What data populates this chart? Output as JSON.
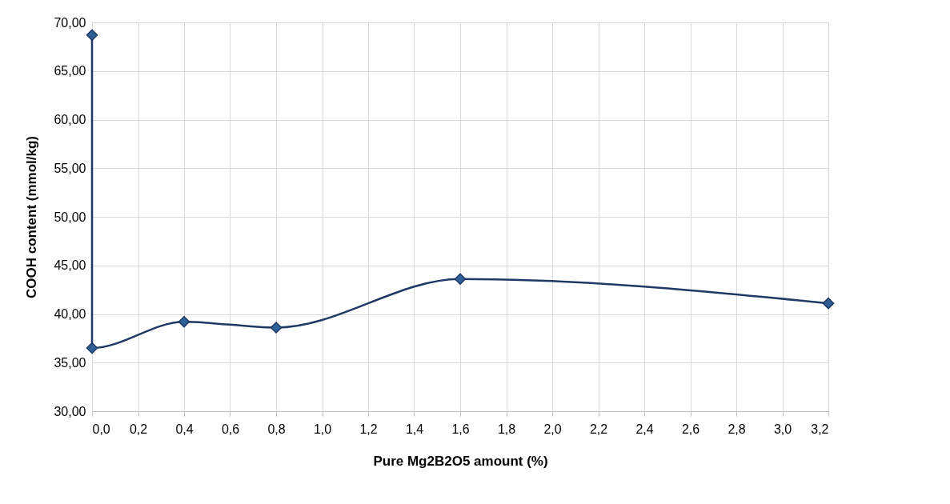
{
  "chart_data": {
    "type": "line",
    "xlabel": "Pure Mg2B2O5 amount (%)",
    "ylabel": "COOH content (mmol/kg)",
    "x": [
      0,
      0,
      0.4,
      0.8,
      1.6,
      3.2
    ],
    "series": [
      {
        "color": "#1f3864",
        "values": [
          68.7,
          36.5,
          39.2,
          38.6,
          43.6,
          41.1
        ]
      }
    ],
    "xlim": [
      0,
      3.2
    ],
    "ylim": [
      30,
      70
    ],
    "xticks": [
      {
        "value": 0,
        "label": "0,0"
      },
      {
        "value": 0.2,
        "label": "0,2"
      },
      {
        "value": 0.4,
        "label": "0,4"
      },
      {
        "value": 0.6,
        "label": "0,6"
      },
      {
        "value": 0.8,
        "label": "0,8"
      },
      {
        "value": 1.0,
        "label": "1,0"
      },
      {
        "value": 1.2,
        "label": "1,2"
      },
      {
        "value": 1.4,
        "label": "1,4"
      },
      {
        "value": 1.6,
        "label": "1,6"
      },
      {
        "value": 1.8,
        "label": "1,8"
      },
      {
        "value": 2.0,
        "label": "2,0"
      },
      {
        "value": 2.2,
        "label": "2,2"
      },
      {
        "value": 2.4,
        "label": "2,4"
      },
      {
        "value": 2.6,
        "label": "2,6"
      },
      {
        "value": 2.8,
        "label": "2,8"
      },
      {
        "value": 3.0,
        "label": "3,0"
      },
      {
        "value": 3.2,
        "label": "3,2"
      }
    ],
    "yticks": [
      {
        "value": 30,
        "label": "30,00"
      },
      {
        "value": 35,
        "label": "35,00"
      },
      {
        "value": 40,
        "label": "40,00"
      },
      {
        "value": 45,
        "label": "45,00"
      },
      {
        "value": 50,
        "label": "50,00"
      },
      {
        "value": 55,
        "label": "55,00"
      },
      {
        "value": 60,
        "label": "60,00"
      },
      {
        "value": 65,
        "label": "65,00"
      },
      {
        "value": 70,
        "label": "70,00"
      }
    ],
    "grid": true,
    "marker": "diamond",
    "line_style": "solid"
  }
}
